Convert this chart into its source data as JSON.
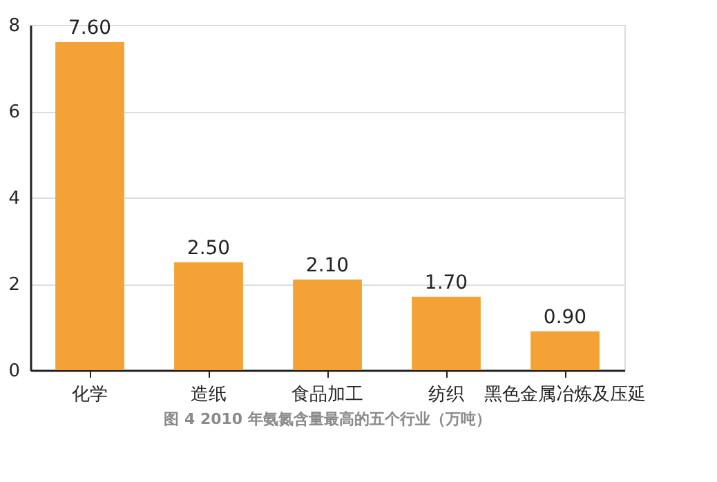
{
  "chart_data": {
    "type": "bar",
    "categories": [
      "化学",
      "造纸",
      "食品加工",
      "纺织",
      "黑色金属冶炼及压延"
    ],
    "values": [
      7.6,
      2.5,
      2.1,
      1.7,
      0.9
    ],
    "value_labels": [
      "7.60",
      "2.50",
      "2.10",
      "1.70",
      "0.90"
    ],
    "color": "#f4a236",
    "ylim": [
      0,
      8
    ],
    "yticks": [
      0,
      2,
      4,
      6,
      8
    ],
    "grid": "y",
    "annotations": [
      "图 4 2010 年氨氮含量最高的五个行业（万吨）"
    ]
  }
}
